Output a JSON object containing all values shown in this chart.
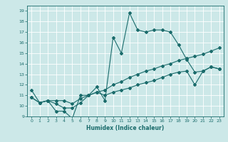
{
  "xlabel": "Humidex (Indice chaleur)",
  "background_color": "#cce8e8",
  "line_color": "#1a6b6b",
  "xlim": [
    -0.5,
    23.5
  ],
  "ylim": [
    9,
    19.5
  ],
  "xticks": [
    0,
    1,
    2,
    3,
    4,
    5,
    6,
    7,
    8,
    9,
    10,
    11,
    12,
    13,
    14,
    15,
    16,
    17,
    18,
    19,
    20,
    21,
    22,
    23
  ],
  "yticks": [
    9,
    10,
    11,
    12,
    13,
    14,
    15,
    16,
    17,
    18,
    19
  ],
  "series": [
    {
      "x": [
        0,
        1,
        2,
        3,
        4,
        5,
        6,
        7,
        8,
        9,
        10,
        11,
        12,
        13,
        14,
        15,
        16,
        17,
        18,
        19,
        20,
        21,
        22,
        23
      ],
      "y": [
        11.5,
        10.3,
        10.5,
        9.5,
        9.5,
        8.8,
        11.0,
        11.0,
        11.8,
        10.5,
        16.5,
        15.0,
        18.8,
        17.2,
        17.0,
        17.2,
        17.2,
        17.0,
        15.8,
        14.4,
        13.2,
        13.3,
        13.7,
        13.5
      ]
    },
    {
      "x": [
        0,
        1,
        2,
        3,
        4,
        5,
        6,
        7,
        8,
        9,
        10,
        11,
        12,
        13,
        14,
        15,
        16,
        17,
        18,
        19,
        20,
        21,
        22,
        23
      ],
      "y": [
        10.8,
        10.3,
        10.5,
        10.2,
        9.8,
        9.8,
        10.3,
        11.0,
        11.3,
        11.0,
        11.3,
        11.5,
        11.7,
        12.0,
        12.2,
        12.4,
        12.7,
        13.0,
        13.2,
        13.3,
        12.0,
        13.3,
        13.7,
        13.5
      ]
    },
    {
      "x": [
        0,
        1,
        2,
        3,
        4,
        5,
        6,
        7,
        8,
        9,
        10,
        11,
        12,
        13,
        14,
        15,
        16,
        17,
        18,
        19,
        20,
        21,
        22,
        23
      ],
      "y": [
        10.8,
        10.3,
        10.5,
        10.5,
        10.5,
        10.2,
        10.7,
        11.0,
        11.3,
        11.5,
        12.0,
        12.3,
        12.7,
        13.0,
        13.3,
        13.5,
        13.8,
        14.0,
        14.3,
        14.5,
        14.7,
        14.9,
        15.2,
        15.5
      ]
    }
  ]
}
